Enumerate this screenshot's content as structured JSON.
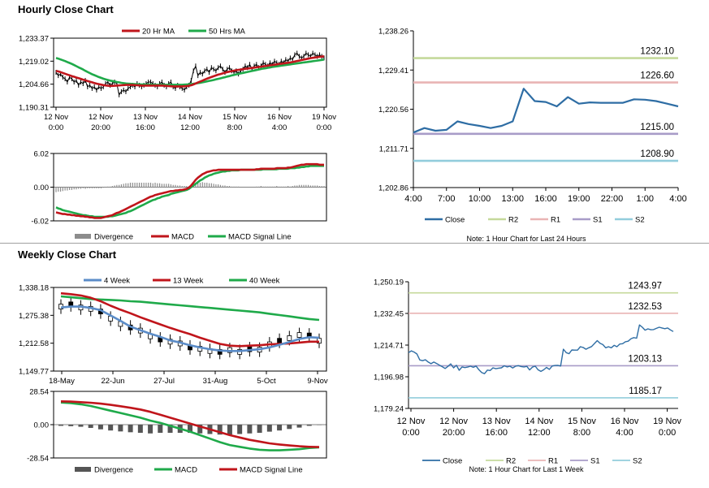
{
  "titles": {
    "hourly": "Hourly Close Chart",
    "weekly": "Weekly Close Chart"
  },
  "colors": {
    "ma20": "#c0151b",
    "ma50": "#1faa4a",
    "macd": "#c0151b",
    "signal": "#1faa4a",
    "divergence": "#8c8c8c",
    "close": "#2e6da4",
    "r2": "#c5d99b",
    "r1": "#e9b4b4",
    "s1": "#a89cc8",
    "s2": "#92cddc",
    "ma4": "#5b8cc8",
    "ma13": "#c0151b",
    "ma40": "#1faa4a",
    "candle": "#000000"
  },
  "chart_data": [
    {
      "type": "line",
      "id": "hourly-price",
      "title": "Hourly Close Chart",
      "legend": [
        "20 Hr MA",
        "50 Hrs MA"
      ],
      "ytick_labels": [
        "1,233.37",
        "1,219.02",
        "1,204.66",
        "1,190.31"
      ],
      "yticks": [
        1233.37,
        1219.02,
        1204.66,
        1190.31
      ],
      "ylim": [
        1190.31,
        1233.37
      ],
      "xtick_labels": [
        [
          "12 Nov",
          "0:00"
        ],
        [
          "12 Nov",
          "20:00"
        ],
        [
          "13 Nov",
          "16:00"
        ],
        [
          "14 Nov",
          "12:00"
        ],
        [
          "15 Nov",
          "8:00"
        ],
        [
          "16 Nov",
          "4:00"
        ],
        [
          "19 Nov",
          "0:00"
        ]
      ],
      "n": 120,
      "close_series": [
        1212,
        1210,
        1211,
        1209,
        1208,
        1206,
        1209,
        1208,
        1206,
        1207,
        1204,
        1206,
        1205,
        1207,
        1203,
        1204,
        1202,
        1203,
        1201,
        1203,
        1202,
        1203,
        1205,
        1206,
        1204,
        1205,
        1206,
        1205,
        1198,
        1200,
        1201,
        1200,
        1202,
        1203,
        1204,
        1203,
        1205,
        1204,
        1203,
        1204,
        1205,
        1206,
        1206,
        1205,
        1204,
        1203,
        1205,
        1206,
        1204,
        1203,
        1205,
        1206,
        1203,
        1202,
        1204,
        1203,
        1202,
        1201,
        1203,
        1204,
        1207,
        1213,
        1216,
        1210,
        1212,
        1211,
        1213,
        1214,
        1212,
        1215,
        1214,
        1213,
        1215,
        1216,
        1214,
        1212,
        1214,
        1215,
        1213,
        1212,
        1213,
        1211,
        1213,
        1214,
        1216,
        1215,
        1217,
        1214,
        1216,
        1217,
        1215,
        1216,
        1218,
        1217,
        1216,
        1218,
        1217,
        1219,
        1218,
        1217,
        1219,
        1218,
        1220,
        1219,
        1221,
        1220,
        1223,
        1224,
        1222,
        1221,
        1222,
        1224,
        1223,
        1222,
        1224,
        1223,
        1222,
        1223,
        1222,
        1221
      ],
      "ma20": [
        1213,
        1212.6,
        1212.2,
        1211.7,
        1211.2,
        1210.7,
        1210.2,
        1209.7,
        1209.3,
        1208.8,
        1208.4,
        1208,
        1207.5,
        1207.1,
        1206.6,
        1206.2,
        1205.8,
        1205.4,
        1205,
        1204.7,
        1204.4,
        1204.1,
        1203.9,
        1203.7,
        1203.6,
        1203.6,
        1203.7,
        1203.8,
        1203.9,
        1204,
        1204.1,
        1204.2,
        1204.2,
        1204.2,
        1204.2,
        1204.1,
        1204,
        1203.9,
        1203.8,
        1203.8,
        1203.8,
        1203.8,
        1203.8,
        1203.8,
        1203.8,
        1203.8,
        1203.8,
        1203.8,
        1203.7,
        1203.6,
        1203.5,
        1203.4,
        1203.3,
        1203.3,
        1203.3,
        1203.3,
        1203.3,
        1203.4,
        1203.5,
        1203.7,
        1204,
        1204.5,
        1205.1,
        1205.7,
        1206.3,
        1206.9,
        1207.5,
        1208.1,
        1208.6,
        1209.1,
        1209.6,
        1210.1,
        1210.6,
        1211,
        1211.4,
        1211.8,
        1212.2,
        1212.5,
        1212.8,
        1213.1,
        1213.4,
        1213.6,
        1213.8,
        1214,
        1214.2,
        1214.4,
        1214.6,
        1214.8,
        1215,
        1215.2,
        1215.4,
        1215.6,
        1215.8,
        1216,
        1216.2,
        1216.4,
        1216.6,
        1216.8,
        1217,
        1217.2,
        1217.4,
        1217.6,
        1217.8,
        1218,
        1218.2,
        1218.5,
        1218.8,
        1219.1,
        1219.4,
        1219.7,
        1220,
        1220.3,
        1220.6,
        1220.9,
        1221.1,
        1221.3,
        1221.5,
        1221.7,
        1221.9,
        1222
      ],
      "ma50": [
        1221,
        1220.6,
        1220.1,
        1219.6,
        1219.1,
        1218.5,
        1217.9,
        1217.3,
        1216.6,
        1215.9,
        1215.2,
        1214.5,
        1213.8,
        1213,
        1212.3,
        1211.6,
        1210.9,
        1210.3,
        1209.7,
        1209.1,
        1208.6,
        1208.1,
        1207.7,
        1207.3,
        1206.9,
        1206.6,
        1206.3,
        1206,
        1205.8,
        1205.5,
        1205.3,
        1205.1,
        1205,
        1204.9,
        1204.8,
        1204.7,
        1204.6,
        1204.6,
        1204.5,
        1204.5,
        1204.4,
        1204.4,
        1204.4,
        1204.3,
        1204.3,
        1204.3,
        1204.3,
        1204.3,
        1204.3,
        1204.3,
        1204.3,
        1204.3,
        1204.3,
        1204.3,
        1204.3,
        1204.3,
        1204.3,
        1204.4,
        1204.5,
        1204.6,
        1204.7,
        1204.9,
        1205.1,
        1205.3,
        1205.5,
        1205.8,
        1206.1,
        1206.4,
        1206.7,
        1207,
        1207.3,
        1207.7,
        1208,
        1208.3,
        1208.7,
        1209,
        1209.4,
        1209.7,
        1210.1,
        1210.4,
        1210.8,
        1211.1,
        1211.4,
        1211.7,
        1212,
        1212.3,
        1212.6,
        1212.9,
        1213.2,
        1213.5,
        1213.8,
        1214.1,
        1214.4,
        1214.6,
        1214.9,
        1215.1,
        1215.4,
        1215.6,
        1215.8,
        1216,
        1216.2,
        1216.4,
        1216.6,
        1216.8,
        1217,
        1217.2,
        1217.4,
        1217.6,
        1217.8,
        1218,
        1218.2,
        1218.4,
        1218.6,
        1218.8,
        1219,
        1219.2,
        1219.4,
        1219.6,
        1219.8,
        1220
      ]
    },
    {
      "type": "line",
      "id": "hourly-macd",
      "legend": [
        "Divergence",
        "MACD",
        "MACD Signal Line"
      ],
      "ytick_labels": [
        "6.02",
        "0.00",
        "-6.02"
      ],
      "yticks": [
        6.02,
        0,
        -6.02
      ],
      "ylim": [
        -6.02,
        6.02
      ],
      "n": 120,
      "macd": [
        -4.5,
        -4.6,
        -4.7,
        -4.8,
        -4.8,
        -4.9,
        -4.9,
        -5,
        -5,
        -5.1,
        -5.1,
        -5.2,
        -5.2,
        -5.3,
        -5.3,
        -5.4,
        -5.4,
        -5.5,
        -5.5,
        -5.5,
        -5.5,
        -5.4,
        -5.3,
        -5.2,
        -5.1,
        -5,
        -4.8,
        -4.6,
        -4.5,
        -4.3,
        -4.1,
        -3.9,
        -3.7,
        -3.5,
        -3.3,
        -3.1,
        -2.9,
        -2.7,
        -2.5,
        -2.3,
        -2.1,
        -1.9,
        -1.7,
        -1.6,
        -1.4,
        -1.3,
        -1.2,
        -1.1,
        -1,
        -0.9,
        -0.8,
        -0.7,
        -0.7,
        -0.6,
        -0.6,
        -0.5,
        -0.5,
        -0.4,
        -0.3,
        -0.1,
        0.3,
        0.8,
        1.3,
        1.7,
        2,
        2.3,
        2.5,
        2.7,
        2.8,
        2.9,
        3,
        3,
        3.1,
        3.1,
        3.1,
        3.1,
        3.1,
        3.1,
        3.1,
        3.1,
        3.1,
        3.1,
        3.1,
        3.1,
        3.1,
        3.1,
        3.1,
        3.1,
        3.1,
        3.2,
        3.2,
        3.3,
        3.3,
        3.3,
        3.3,
        3.3,
        3.3,
        3.3,
        3.4,
        3.4,
        3.4,
        3.4,
        3.4,
        3.5,
        3.5,
        3.6,
        3.7,
        3.8,
        3.9,
        4,
        4,
        4.1,
        4.1,
        4.1,
        4.1,
        4.1,
        4.1,
        4,
        4,
        4
      ],
      "signal": [
        -3.6,
        -3.8,
        -3.9,
        -4.1,
        -4.2,
        -4.3,
        -4.4,
        -4.5,
        -4.6,
        -4.7,
        -4.8,
        -4.9,
        -5,
        -5,
        -5.1,
        -5.2,
        -5.2,
        -5.3,
        -5.3,
        -5.3,
        -5.3,
        -5.3,
        -5.3,
        -5.3,
        -5.2,
        -5.2,
        -5.1,
        -5,
        -4.9,
        -4.8,
        -4.7,
        -4.6,
        -4.4,
        -4.3,
        -4.1,
        -3.9,
        -3.7,
        -3.5,
        -3.3,
        -3.1,
        -2.9,
        -2.7,
        -2.5,
        -2.3,
        -2.2,
        -2,
        -1.9,
        -1.7,
        -1.6,
        -1.5,
        -1.4,
        -1.2,
        -1.1,
        -1,
        -0.9,
        -0.8,
        -0.7,
        -0.6,
        -0.5,
        -0.3,
        0,
        0.3,
        0.6,
        0.9,
        1.2,
        1.4,
        1.7,
        1.9,
        2.1,
        2.2,
        2.4,
        2.5,
        2.6,
        2.7,
        2.8,
        2.8,
        2.9,
        2.9,
        3,
        3,
        3,
        3,
        3.1,
        3.1,
        3.1,
        3.1,
        3.1,
        3.1,
        3.1,
        3.1,
        3.1,
        3.1,
        3.2,
        3.2,
        3.2,
        3.2,
        3.2,
        3.2,
        3.2,
        3.3,
        3.3,
        3.3,
        3.3,
        3.3,
        3.4,
        3.4,
        3.4,
        3.5,
        3.5,
        3.6,
        3.6,
        3.7,
        3.7,
        3.8,
        3.8,
        3.8,
        3.8,
        3.8,
        3.8,
        3.8
      ]
    },
    {
      "type": "line",
      "id": "hourly-pivot",
      "note": "Note: 1 Hour Chart for Last 24 Hours",
      "legend": [
        "Close",
        "R2",
        "R1",
        "S1",
        "S2"
      ],
      "ytick_labels": [
        "1,238.26",
        "1,229.41",
        "1,220.56",
        "1,211.71",
        "1,202.86"
      ],
      "yticks": [
        1238.26,
        1229.41,
        1220.56,
        1211.71,
        1202.86
      ],
      "ylim": [
        1202.86,
        1238.26
      ],
      "xtick_labels": [
        "4:00",
        "7:00",
        "10:00",
        "13:00",
        "16:00",
        "19:00",
        "22:00",
        "1:00",
        "4:00"
      ],
      "x": [
        0,
        1,
        2,
        3,
        4,
        5,
        6,
        7,
        8,
        9,
        10,
        11,
        12,
        13,
        14,
        15,
        16,
        17,
        18,
        19,
        20,
        21,
        22,
        23,
        24
      ],
      "close": [
        1215.3,
        1216.3,
        1215.7,
        1215.9,
        1217.8,
        1217.2,
        1216.8,
        1216.3,
        1216.8,
        1217.8,
        1225.2,
        1222.4,
        1222.2,
        1221.2,
        1223.3,
        1221.8,
        1222.1,
        1222,
        1222,
        1222,
        1222.8,
        1222.7,
        1222.4,
        1221.8,
        1221.2
      ],
      "levels": [
        {
          "name": "R2",
          "value": 1232.1,
          "label": "1232.10"
        },
        {
          "name": "R1",
          "value": 1226.6,
          "label": "1226.60"
        },
        {
          "name": "S1",
          "value": 1215.0,
          "label": "1215.00"
        },
        {
          "name": "S2",
          "value": 1208.9,
          "label": "1208.90"
        }
      ]
    },
    {
      "type": "line",
      "id": "weekly-price",
      "title": "Weekly Close Chart",
      "legend": [
        "4 Week",
        "13 Week",
        "40 Week"
      ],
      "ytick_labels": [
        "1,338.18",
        "1,275.38",
        "1,212.58",
        "1,149.77"
      ],
      "yticks": [
        1338.18,
        1275.38,
        1212.58,
        1149.77
      ],
      "ylim": [
        1149.77,
        1338.18
      ],
      "xtick_labels": [
        "18-May",
        "22-Jun",
        "27-Jul",
        "31-Aug",
        "5-Oct",
        "9-Nov"
      ],
      "n": 27,
      "close_series": [
        1295,
        1300,
        1293,
        1290,
        1284,
        1268,
        1256,
        1248,
        1241,
        1228,
        1221,
        1216,
        1212,
        1203,
        1200,
        1195,
        1193,
        1197,
        1193,
        1199,
        1198,
        1210,
        1218,
        1224,
        1231,
        1230,
        1218
      ],
      "ma4": [
        1293,
        1295,
        1295,
        1292,
        1287,
        1275,
        1263,
        1250,
        1242,
        1234,
        1227,
        1219,
        1214,
        1208,
        1203,
        1199,
        1196,
        1195,
        1195,
        1197,
        1199,
        1203,
        1209,
        1215,
        1222,
        1226,
        1225
      ],
      "ma13": [
        1325,
        1323,
        1320,
        1315,
        1307,
        1297,
        1288,
        1280,
        1271,
        1263,
        1255,
        1247,
        1240,
        1233,
        1225,
        1218,
        1211,
        1207,
        1206,
        1207,
        1208,
        1210,
        1211,
        1212,
        1214,
        1216,
        1216
      ],
      "ma40": [
        1318,
        1316,
        1314,
        1312,
        1311,
        1310,
        1309,
        1307,
        1306,
        1304,
        1302,
        1300,
        1298,
        1296,
        1294,
        1292,
        1290,
        1288,
        1286,
        1284,
        1282,
        1279,
        1276,
        1273,
        1270,
        1267,
        1265
      ]
    },
    {
      "type": "bar+line",
      "id": "weekly-macd",
      "legend": [
        "Divergence",
        "MACD",
        "MACD Signal Line"
      ],
      "ytick_labels": [
        "28.54",
        "0.00",
        "-28.54"
      ],
      "yticks": [
        28.54,
        0,
        -28.54
      ],
      "ylim": [
        -28.54,
        28.54
      ],
      "n": 27,
      "macd": [
        19,
        18.5,
        17.5,
        16,
        14,
        12,
        10,
        8,
        6,
        3.5,
        1.5,
        -1,
        -3.5,
        -6,
        -9,
        -12,
        -15,
        -17.5,
        -19,
        -20.5,
        -21.5,
        -22,
        -22,
        -21.5,
        -21,
        -20,
        -19.5
      ],
      "signal": [
        20,
        19.8,
        19.3,
        18.8,
        18,
        17,
        15.8,
        14.5,
        13,
        11,
        8.5,
        6,
        3.5,
        1,
        -1.5,
        -4,
        -6.5,
        -9,
        -11,
        -13,
        -14.5,
        -16,
        -17,
        -17.8,
        -18.5,
        -19,
        -19.2
      ],
      "divergence": [
        -1,
        -1.3,
        -1.8,
        -2.8,
        -4,
        -5,
        -5.8,
        -6.5,
        -7,
        -7.5,
        -7,
        -7,
        -7,
        -7,
        -7.5,
        -8,
        -8.5,
        -8.5,
        -8,
        -7.5,
        -7,
        -6,
        -5,
        -3.7,
        -2.5,
        -1,
        -0.3
      ]
    },
    {
      "type": "line",
      "id": "weekly-pivot",
      "note": "Note: 1 Hour Chart for Last 1 Week",
      "legend": [
        "Close",
        "R2",
        "R1",
        "S1",
        "S2"
      ],
      "ytick_labels": [
        "1,250.19",
        "1,232.45",
        "1,214.71",
        "1,196.98",
        "1,179.24"
      ],
      "yticks": [
        1250.19,
        1232.45,
        1214.71,
        1196.98,
        1179.24
      ],
      "ylim": [
        1179.24,
        1250.19
      ],
      "xtick_labels": [
        [
          "12 Nov",
          "0:00"
        ],
        [
          "12 Nov",
          "20:00"
        ],
        [
          "13 Nov",
          "16:00"
        ],
        [
          "14 Nov",
          "12:00"
        ],
        [
          "15 Nov",
          "8:00"
        ],
        [
          "16 Nov",
          "4:00"
        ],
        [
          "19 Nov",
          "0:00"
        ]
      ],
      "close": [
        1210.5,
        1211.5,
        1210.8,
        1209.7,
        1206.4,
        1206,
        1206.5,
        1205.2,
        1204.3,
        1205.2,
        1204.4,
        1203.5,
        1202.6,
        1201.6,
        1202.8,
        1204.2,
        1202,
        1203.4,
        1200.6,
        1202.5,
        1202.1,
        1202.4,
        1202.9,
        1202.3,
        1203,
        1200.9,
        1199.3,
        1198.7,
        1200.7,
        1200.5,
        1202,
        1201.5,
        1201.8,
        1202,
        1203.1,
        1202.5,
        1202.9,
        1201.9,
        1202.9,
        1203.2,
        1202.7,
        1202.5,
        1202.8,
        1200.8,
        1202.4,
        1202.9,
        1200.9,
        1200,
        1200.9,
        1202.2,
        1201.1,
        1203,
        1203.3,
        1203.4,
        1203,
        1212.4,
        1210.5,
        1209.9,
        1212,
        1211.9,
        1211.9,
        1213.8,
        1213.4,
        1212.4,
        1213.2,
        1213.9,
        1215.6,
        1217.2,
        1215.7,
        1215,
        1213.2,
        1213.8,
        1213.2,
        1214.6,
        1213.8,
        1215.3,
        1215.5,
        1216.6,
        1216.9,
        1218.3,
        1218.9,
        1218.6,
        1226,
        1224.7,
        1223.1,
        1223.8,
        1223.3,
        1223.4,
        1224.1,
        1224.7,
        1224.3,
        1223.9,
        1224.3,
        1223.2,
        1222.3
      ],
      "levels": [
        {
          "name": "R2",
          "value": 1243.97,
          "label": "1243.97"
        },
        {
          "name": "R1",
          "value": 1232.53,
          "label": "1232.53"
        },
        {
          "name": "S1",
          "value": 1203.13,
          "label": "1203.13"
        },
        {
          "name": "S2",
          "value": 1185.17,
          "label": "1185.17"
        }
      ]
    }
  ]
}
